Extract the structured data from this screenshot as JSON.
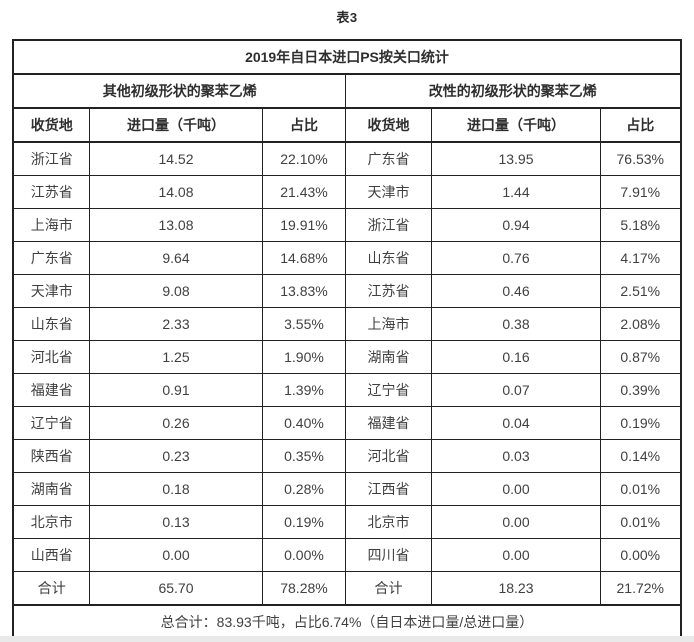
{
  "caption": "表3",
  "chart_data": {
    "type": "table",
    "title": "2019年自日本进口PS按关口统计",
    "caption": "表3",
    "groups": [
      {
        "name": "其他初级形状的聚苯乙烯",
        "columns": [
          "收货地",
          "进口量（千吨）",
          "占比"
        ],
        "rows": [
          [
            "浙江省",
            "14.52",
            "22.10%"
          ],
          [
            "江苏省",
            "14.08",
            "21.43%"
          ],
          [
            "上海市",
            "13.08",
            "19.91%"
          ],
          [
            "广东省",
            "9.64",
            "14.68%"
          ],
          [
            "天津市",
            "9.08",
            "13.83%"
          ],
          [
            "山东省",
            "2.33",
            "3.55%"
          ],
          [
            "河北省",
            "1.25",
            "1.90%"
          ],
          [
            "福建省",
            "0.91",
            "1.39%"
          ],
          [
            "辽宁省",
            "0.26",
            "0.40%"
          ],
          [
            "陕西省",
            "0.23",
            "0.35%"
          ],
          [
            "湖南省",
            "0.18",
            "0.28%"
          ],
          [
            "北京市",
            "0.13",
            "0.19%"
          ],
          [
            "山西省",
            "0.00",
            "0.00%"
          ],
          [
            "合计",
            "65.70",
            "78.28%"
          ]
        ]
      },
      {
        "name": "改性的初级形状的聚苯乙烯",
        "columns": [
          "收货地",
          "进口量（千吨）",
          "占比"
        ],
        "rows": [
          [
            "广东省",
            "13.95",
            "76.53%"
          ],
          [
            "天津市",
            "1.44",
            "7.91%"
          ],
          [
            "浙江省",
            "0.94",
            "5.18%"
          ],
          [
            "山东省",
            "0.76",
            "4.17%"
          ],
          [
            "江苏省",
            "0.46",
            "2.51%"
          ],
          [
            "上海市",
            "0.38",
            "2.08%"
          ],
          [
            "湖南省",
            "0.16",
            "0.87%"
          ],
          [
            "辽宁省",
            "0.07",
            "0.39%"
          ],
          [
            "福建省",
            "0.04",
            "0.19%"
          ],
          [
            "河北省",
            "0.03",
            "0.14%"
          ],
          [
            "江西省",
            "0.00",
            "0.01%"
          ],
          [
            "北京市",
            "0.00",
            "0.01%"
          ],
          [
            "四川省",
            "0.00",
            "0.00%"
          ],
          [
            "合计",
            "18.23",
            "21.72%"
          ]
        ]
      }
    ],
    "footer": "总合计：83.93千吨，占比6.74%（自日本进口量/总进口量）",
    "layout": {
      "legend": "none",
      "grid": "full-borders",
      "total_row_label": "合计"
    }
  },
  "colors": {
    "text": "#404040",
    "header_text": "#2e2e2e",
    "border": "#222222",
    "background": "#ffffff",
    "bottom_strip": "#e9e9e9"
  }
}
